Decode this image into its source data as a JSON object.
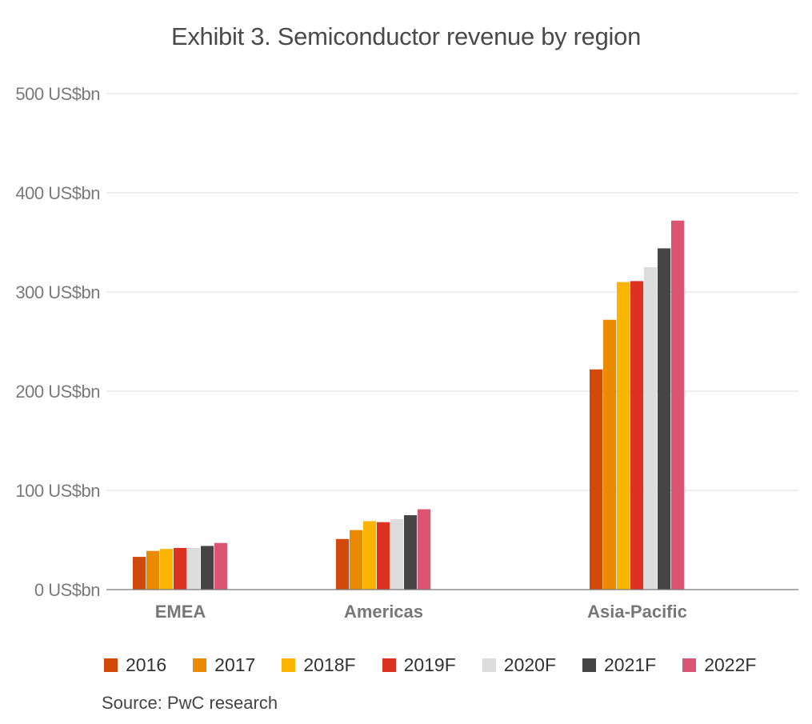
{
  "chart_data": {
    "type": "bar",
    "title": "Exhibit 3. Semiconductor revenue by region",
    "xlabel": "",
    "ylabel": "",
    "categories": [
      "EMEA",
      "Americas",
      "Asia-Pacific"
    ],
    "series": [
      {
        "name": "2016",
        "color": "#d14a0a",
        "values": [
          33,
          51,
          222
        ]
      },
      {
        "name": "2017",
        "color": "#e98a00",
        "values": [
          39,
          60,
          272
        ]
      },
      {
        "name": "2018F",
        "color": "#fbb500",
        "values": [
          41,
          69,
          310
        ]
      },
      {
        "name": "2019F",
        "color": "#dd3222",
        "values": [
          42,
          68,
          311
        ]
      },
      {
        "name": "2020F",
        "color": "#dcdcdc",
        "values": [
          42,
          71,
          325
        ]
      },
      {
        "name": "2021F",
        "color": "#454545",
        "values": [
          44,
          75,
          344
        ]
      },
      {
        "name": "2022F",
        "color": "#db5472",
        "values": [
          47,
          81,
          372
        ]
      }
    ],
    "ylim": [
      0,
      500
    ],
    "yticks": [
      0,
      100,
      200,
      300,
      400,
      500
    ],
    "ytick_labels": [
      "0 US$bn",
      "100 US$bn",
      "200 US$bn",
      "300 US$bn",
      "400 US$bn",
      "500 US$bn"
    ],
    "grid": true,
    "legend_position": "bottom",
    "source": "Source: PwC research"
  }
}
